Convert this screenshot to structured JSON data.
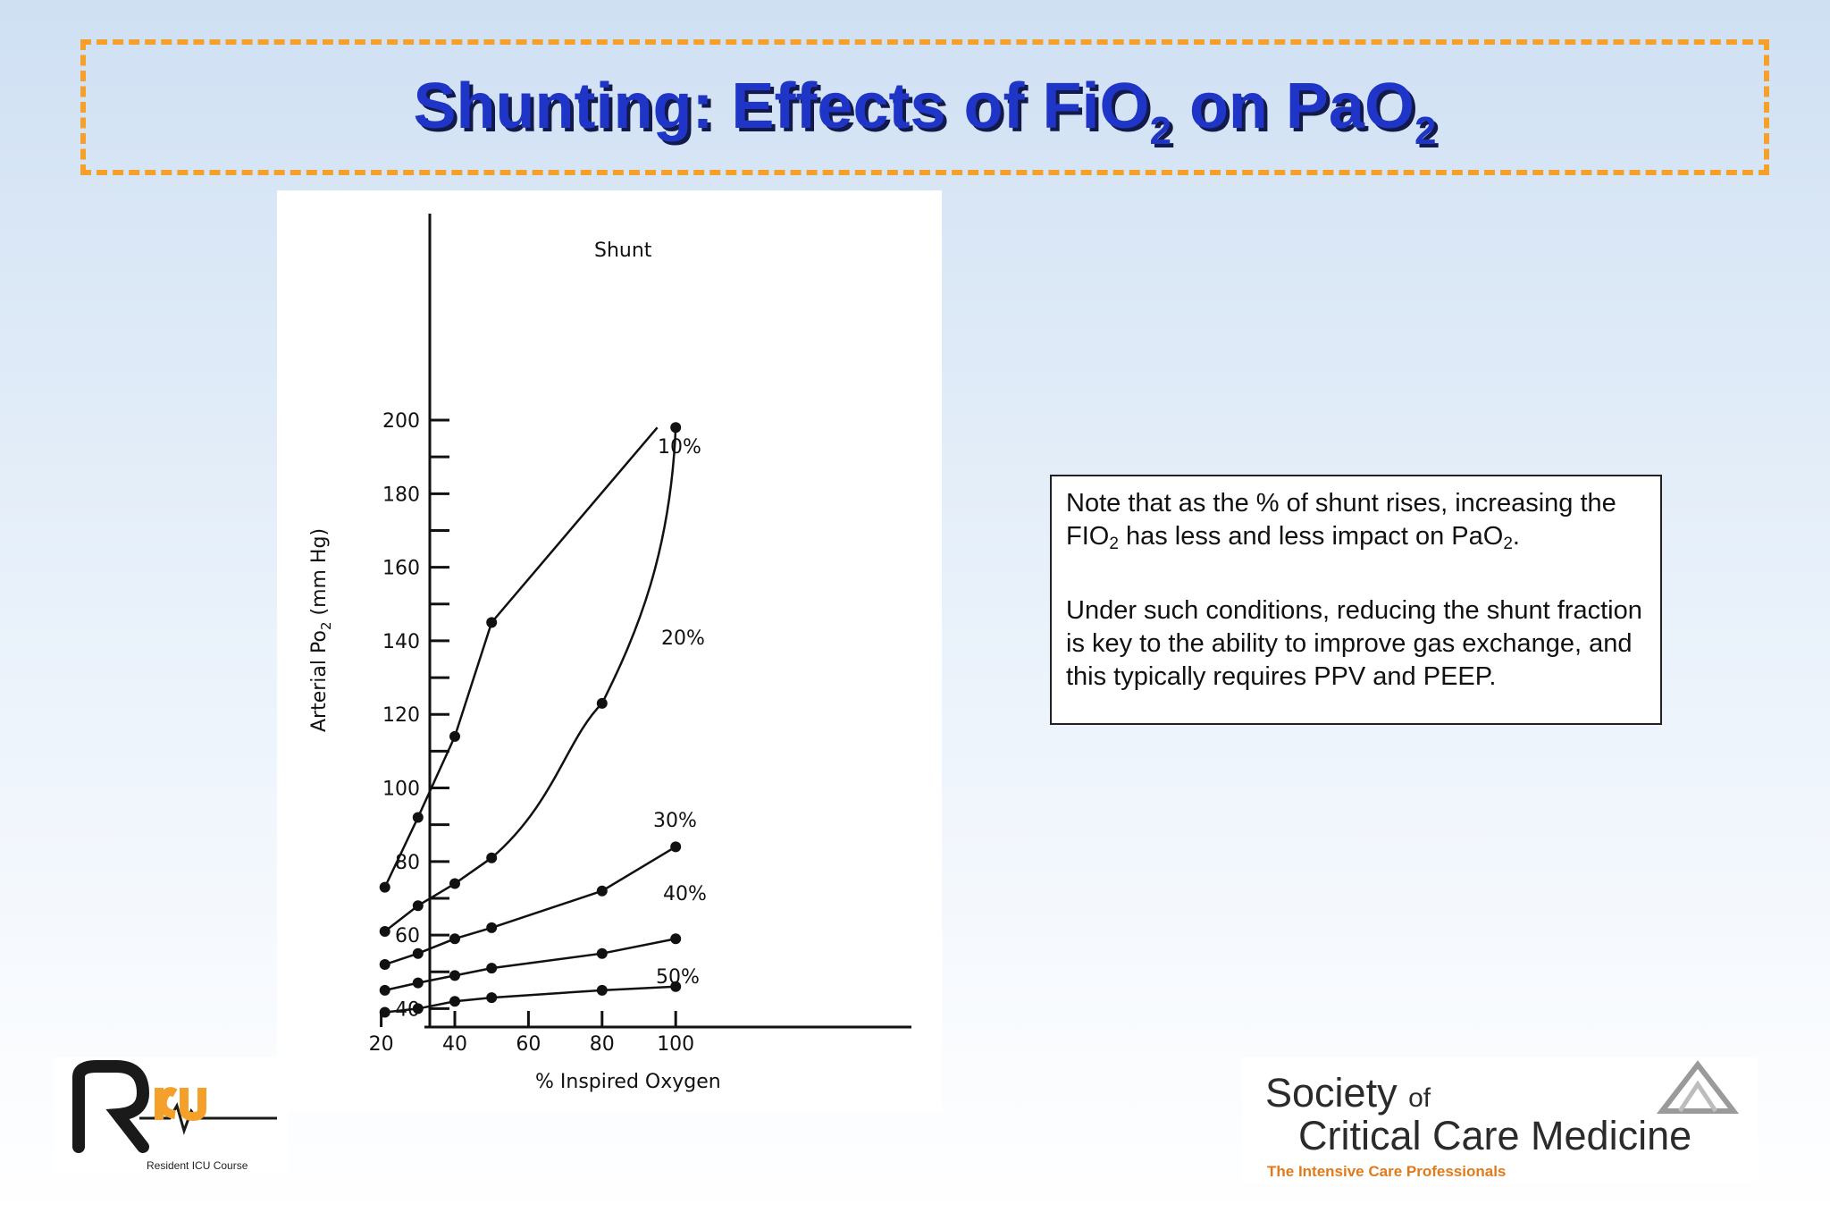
{
  "header": {
    "title_main": "Shunting: Effects of FiO",
    "title_sub1": "2",
    "title_mid": " on PaO",
    "title_sub2": "2"
  },
  "note": {
    "p1_a": "Note that as the % of shunt rises, increasing the FIO",
    "p1_sub1": "2",
    "p1_b": " has less and less impact on PaO",
    "p1_sub2": "2",
    "p1_c": ".",
    "p2": "Under such conditions, reducing the shunt fraction is key to the ability to improve gas exchange, and this typically requires PPV and PEEP."
  },
  "logos": {
    "ricu_tagline": "Resident ICU Course",
    "sccm_society": "Society",
    "sccm_of": "of",
    "sccm_name": "Critical Care Medicine",
    "sccm_tagline": "The Intensive Care Professionals"
  },
  "colors": {
    "title": "#1f35c8",
    "title_shadow": "#131a4a",
    "dash_border": "#f5a02a",
    "sccm_tagline": "#e07a1b"
  },
  "chart_data": {
    "type": "line",
    "title": "",
    "xlabel": "% Inspired Oxygen",
    "ylabel": "Arterial Po2 (mm Hg)",
    "xlim": [
      15,
      105
    ],
    "ylim": [
      35,
      200
    ],
    "x_ticks": [
      20,
      40,
      60,
      80,
      100
    ],
    "y_ticks": [
      40,
      60,
      80,
      100,
      120,
      140,
      160,
      180,
      200
    ],
    "legend_title": "Shunt",
    "grid": false,
    "series": [
      {
        "name": "10%",
        "x": [
          21,
          30,
          40,
          50
        ],
        "y": [
          73,
          92,
          114,
          145
        ],
        "extends_to": [
          95,
          198
        ]
      },
      {
        "name": "20%",
        "x": [
          21,
          30,
          40,
          50,
          80,
          100
        ],
        "y": [
          61,
          68,
          74,
          81,
          123,
          198
        ]
      },
      {
        "name": "30%",
        "x": [
          21,
          30,
          40,
          50,
          80,
          100
        ],
        "y": [
          52,
          55,
          59,
          62,
          72,
          84
        ]
      },
      {
        "name": "40%",
        "x": [
          21,
          30,
          40,
          50,
          80,
          100
        ],
        "y": [
          45,
          47,
          49,
          51,
          55,
          59
        ]
      },
      {
        "name": "50%",
        "x": [
          21,
          30,
          40,
          50,
          80,
          100
        ],
        "y": [
          39,
          40,
          42,
          43,
          45,
          46
        ]
      }
    ]
  }
}
